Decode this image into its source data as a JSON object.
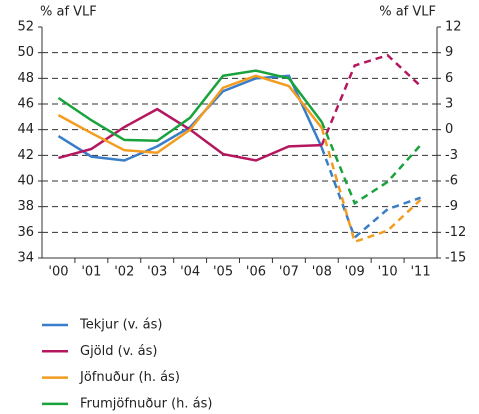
{
  "chart_data": {
    "type": "line",
    "ylabel": "% af VLF",
    "y2label": "% af VLF",
    "categories": [
      "'00",
      "'01",
      "'02",
      "'03",
      "'04",
      "'05",
      "'06",
      "'07",
      "'08",
      "'09",
      "'10",
      "'11"
    ],
    "dashed_from": "'08",
    "series": [
      {
        "name": "Tekjur (v. ás)",
        "color": "#3a7dc9",
        "values": [
          43.5,
          41.9,
          41.6,
          42.7,
          44.2,
          47.0,
          48.0,
          48.2,
          42.6,
          35.6,
          37.8,
          38.7
        ]
      },
      {
        "name": "Gjöld (v. ás)",
        "color": "#b5175f",
        "values": [
          41.8,
          42.5,
          44.2,
          45.6,
          44.0,
          42.1,
          41.6,
          42.7,
          42.8,
          49.0,
          49.8,
          47.4
        ]
      },
      {
        "name": "Jöfnuður (h. ás)",
        "color": "#f39c1f",
        "axis": "y2",
        "values": [
          1.7,
          -0.4,
          -2.4,
          -2.7,
          0.0,
          4.9,
          6.3,
          5.1,
          0.2,
          -13.1,
          -11.8,
          -8.2
        ]
      },
      {
        "name": "Frumjöfnuður (h. ás)",
        "color": "#1aa23c",
        "axis": "y2",
        "values": [
          3.7,
          1.1,
          -1.2,
          -1.3,
          1.4,
          6.3,
          6.9,
          6.0,
          0.9,
          -8.6,
          -6.1,
          -1.8
        ]
      }
    ],
    "ylim": [
      34,
      52
    ],
    "yticks": [
      34,
      36,
      38,
      40,
      42,
      44,
      46,
      48,
      50,
      52
    ],
    "y2lim": [
      -15,
      12
    ],
    "y2ticks": [
      -15,
      -12,
      -9,
      -6,
      -3,
      0,
      3,
      6,
      9,
      12
    ],
    "grid": true,
    "legend": "bottom"
  }
}
